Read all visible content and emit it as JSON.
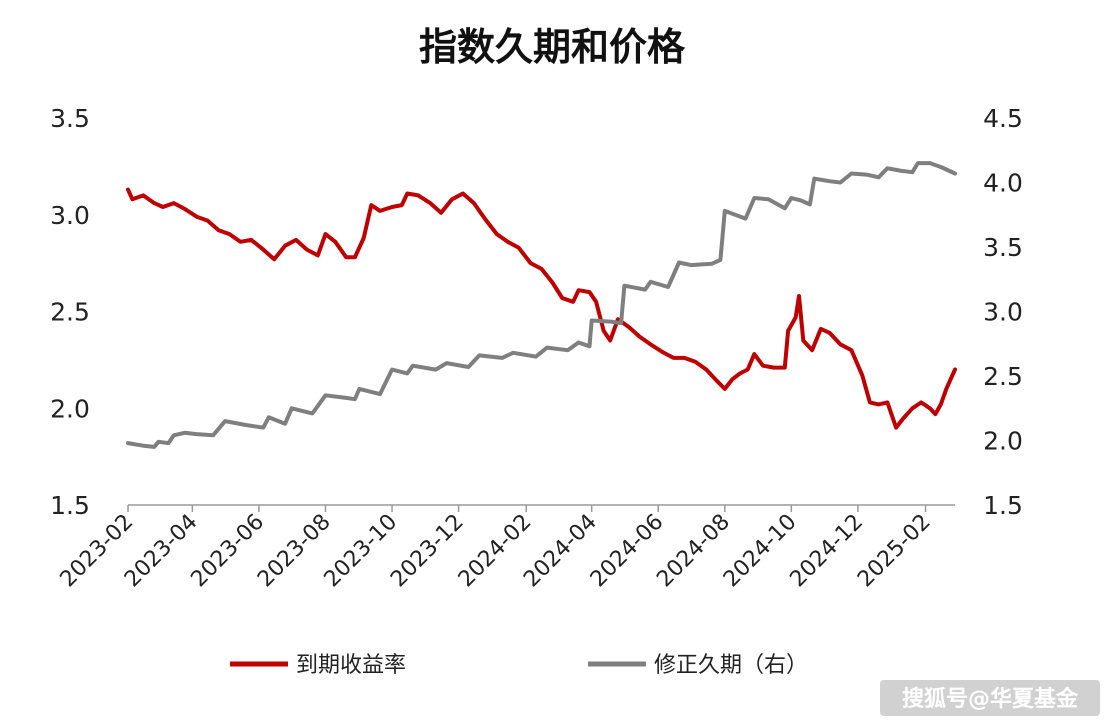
{
  "chart_data": {
    "type": "line",
    "title": "指数久期和价格",
    "x_tick_labels": [
      "2023-02",
      "2023-04",
      "2023-06",
      "2023-08",
      "2023-10",
      "2023-12",
      "2024-02",
      "2024-04",
      "2024-06",
      "2024-08",
      "2024-10",
      "2024-12",
      "2025-02"
    ],
    "x_range": [
      "2023-02-01",
      "2025-02-28"
    ],
    "y_left": {
      "ticks": [
        "1.5",
        "2.0",
        "2.5",
        "3.0",
        "3.5"
      ],
      "ylim": [
        1.5,
        3.5
      ]
    },
    "y_right": {
      "ticks": [
        "1.5",
        "2.0",
        "2.5",
        "3.0",
        "3.5",
        "4.0",
        "4.5"
      ],
      "ylim": [
        1.5,
        4.5
      ]
    },
    "grid": false,
    "legend_position": "bottom",
    "series": [
      {
        "name": "到期收益率",
        "axis": "left",
        "color": "#c00000",
        "points": [
          [
            "2023-02-01",
            3.13
          ],
          [
            "2023-02-05",
            3.08
          ],
          [
            "2023-02-15",
            3.1
          ],
          [
            "2023-02-25",
            3.06
          ],
          [
            "2023-03-05",
            3.04
          ],
          [
            "2023-03-15",
            3.06
          ],
          [
            "2023-03-25",
            3.03
          ],
          [
            "2023-04-05",
            2.99
          ],
          [
            "2023-04-15",
            2.97
          ],
          [
            "2023-04-25",
            2.92
          ],
          [
            "2023-05-05",
            2.9
          ],
          [
            "2023-05-15",
            2.86
          ],
          [
            "2023-05-25",
            2.87
          ],
          [
            "2023-06-05",
            2.82
          ],
          [
            "2023-06-15",
            2.77
          ],
          [
            "2023-06-25",
            2.84
          ],
          [
            "2023-07-05",
            2.87
          ],
          [
            "2023-07-15",
            2.82
          ],
          [
            "2023-07-25",
            2.79
          ],
          [
            "2023-08-01",
            2.9
          ],
          [
            "2023-08-10",
            2.86
          ],
          [
            "2023-08-20",
            2.78
          ],
          [
            "2023-08-28",
            2.78
          ],
          [
            "2023-09-05",
            2.88
          ],
          [
            "2023-09-12",
            3.05
          ],
          [
            "2023-09-20",
            3.02
          ],
          [
            "2023-10-01",
            3.04
          ],
          [
            "2023-10-10",
            3.05
          ],
          [
            "2023-10-15",
            3.11
          ],
          [
            "2023-10-25",
            3.1
          ],
          [
            "2023-11-05",
            3.06
          ],
          [
            "2023-11-15",
            3.01
          ],
          [
            "2023-11-25",
            3.08
          ],
          [
            "2023-12-05",
            3.11
          ],
          [
            "2023-12-15",
            3.06
          ],
          [
            "2023-12-25",
            2.98
          ],
          [
            "2024-01-05",
            2.9
          ],
          [
            "2024-01-15",
            2.86
          ],
          [
            "2024-01-25",
            2.83
          ],
          [
            "2024-02-05",
            2.75
          ],
          [
            "2024-02-15",
            2.72
          ],
          [
            "2024-02-25",
            2.65
          ],
          [
            "2024-03-05",
            2.57
          ],
          [
            "2024-03-15",
            2.55
          ],
          [
            "2024-03-20",
            2.61
          ],
          [
            "2024-03-30",
            2.6
          ],
          [
            "2024-04-05",
            2.55
          ],
          [
            "2024-04-12",
            2.4
          ],
          [
            "2024-04-18",
            2.35
          ],
          [
            "2024-04-25",
            2.46
          ],
          [
            "2024-05-05",
            2.42
          ],
          [
            "2024-05-15",
            2.37
          ],
          [
            "2024-05-25",
            2.33
          ],
          [
            "2024-06-05",
            2.29
          ],
          [
            "2024-06-15",
            2.26
          ],
          [
            "2024-06-25",
            2.26
          ],
          [
            "2024-07-05",
            2.24
          ],
          [
            "2024-07-15",
            2.2
          ],
          [
            "2024-07-25",
            2.14
          ],
          [
            "2024-08-01",
            2.1
          ],
          [
            "2024-08-08",
            2.15
          ],
          [
            "2024-08-15",
            2.18
          ],
          [
            "2024-08-22",
            2.2
          ],
          [
            "2024-08-28",
            2.28
          ],
          [
            "2024-09-05",
            2.22
          ],
          [
            "2024-09-15",
            2.21
          ],
          [
            "2024-09-25",
            2.21
          ],
          [
            "2024-09-28",
            2.4
          ],
          [
            "2024-10-05",
            2.47
          ],
          [
            "2024-10-08",
            2.58
          ],
          [
            "2024-10-12",
            2.35
          ],
          [
            "2024-10-20",
            2.3
          ],
          [
            "2024-10-28",
            2.41
          ],
          [
            "2024-11-05",
            2.39
          ],
          [
            "2024-11-15",
            2.33
          ],
          [
            "2024-11-25",
            2.3
          ],
          [
            "2024-12-05",
            2.17
          ],
          [
            "2024-12-12",
            2.03
          ],
          [
            "2024-12-20",
            2.02
          ],
          [
            "2024-12-28",
            2.03
          ],
          [
            "2025-01-05",
            1.9
          ],
          [
            "2025-01-12",
            1.95
          ],
          [
            "2025-01-20",
            2.0
          ],
          [
            "2025-01-28",
            2.03
          ],
          [
            "2025-02-05",
            2.0
          ],
          [
            "2025-02-10",
            1.97
          ],
          [
            "2025-02-15",
            2.02
          ],
          [
            "2025-02-20",
            2.1
          ],
          [
            "2025-02-28",
            2.2
          ]
        ]
      },
      {
        "name": "修正久期（右）",
        "axis": "right",
        "color": "#7f7f7f",
        "points": [
          [
            "2023-02-01",
            1.98
          ],
          [
            "2023-02-15",
            1.96
          ],
          [
            "2023-02-25",
            1.95
          ],
          [
            "2023-03-01",
            1.99
          ],
          [
            "2023-03-10",
            1.98
          ],
          [
            "2023-03-15",
            2.04
          ],
          [
            "2023-03-25",
            2.06
          ],
          [
            "2023-04-05",
            2.05
          ],
          [
            "2023-04-20",
            2.04
          ],
          [
            "2023-05-01",
            2.15
          ],
          [
            "2023-05-20",
            2.12
          ],
          [
            "2023-06-05",
            2.1
          ],
          [
            "2023-06-10",
            2.18
          ],
          [
            "2023-06-25",
            2.13
          ],
          [
            "2023-07-01",
            2.25
          ],
          [
            "2023-07-20",
            2.21
          ],
          [
            "2023-08-01",
            2.35
          ],
          [
            "2023-08-20",
            2.33
          ],
          [
            "2023-08-28",
            2.32
          ],
          [
            "2023-09-01",
            2.4
          ],
          [
            "2023-09-20",
            2.36
          ],
          [
            "2023-10-01",
            2.55
          ],
          [
            "2023-10-15",
            2.52
          ],
          [
            "2023-10-20",
            2.58
          ],
          [
            "2023-11-10",
            2.55
          ],
          [
            "2023-11-20",
            2.6
          ],
          [
            "2023-12-10",
            2.57
          ],
          [
            "2023-12-20",
            2.66
          ],
          [
            "2024-01-10",
            2.64
          ],
          [
            "2024-01-20",
            2.68
          ],
          [
            "2024-02-10",
            2.65
          ],
          [
            "2024-02-20",
            2.72
          ],
          [
            "2024-03-10",
            2.7
          ],
          [
            "2024-03-20",
            2.76
          ],
          [
            "2024-03-30",
            2.73
          ],
          [
            "2024-04-01",
            2.93
          ],
          [
            "2024-04-20",
            2.92
          ],
          [
            "2024-04-28",
            2.91
          ],
          [
            "2024-05-01",
            3.2
          ],
          [
            "2024-05-20",
            3.17
          ],
          [
            "2024-05-25",
            3.23
          ],
          [
            "2024-06-10",
            3.19
          ],
          [
            "2024-06-20",
            3.38
          ],
          [
            "2024-07-01",
            3.36
          ],
          [
            "2024-07-20",
            3.37
          ],
          [
            "2024-07-28",
            3.4
          ],
          [
            "2024-08-01",
            3.78
          ],
          [
            "2024-08-20",
            3.72
          ],
          [
            "2024-08-28",
            3.88
          ],
          [
            "2024-09-10",
            3.87
          ],
          [
            "2024-09-25",
            3.8
          ],
          [
            "2024-10-01",
            3.88
          ],
          [
            "2024-10-10",
            3.86
          ],
          [
            "2024-10-18",
            3.83
          ],
          [
            "2024-10-22",
            4.03
          ],
          [
            "2024-11-05",
            4.01
          ],
          [
            "2024-11-15",
            4.0
          ],
          [
            "2024-11-25",
            4.07
          ],
          [
            "2024-12-10",
            4.06
          ],
          [
            "2024-12-20",
            4.04
          ],
          [
            "2024-12-28",
            4.11
          ],
          [
            "2025-01-10",
            4.09
          ],
          [
            "2025-01-20",
            4.08
          ],
          [
            "2025-01-25",
            4.15
          ],
          [
            "2025-02-05",
            4.15
          ],
          [
            "2025-02-15",
            4.12
          ],
          [
            "2025-02-28",
            4.07
          ]
        ]
      }
    ]
  },
  "watermark": "搜狐号@华夏基金"
}
